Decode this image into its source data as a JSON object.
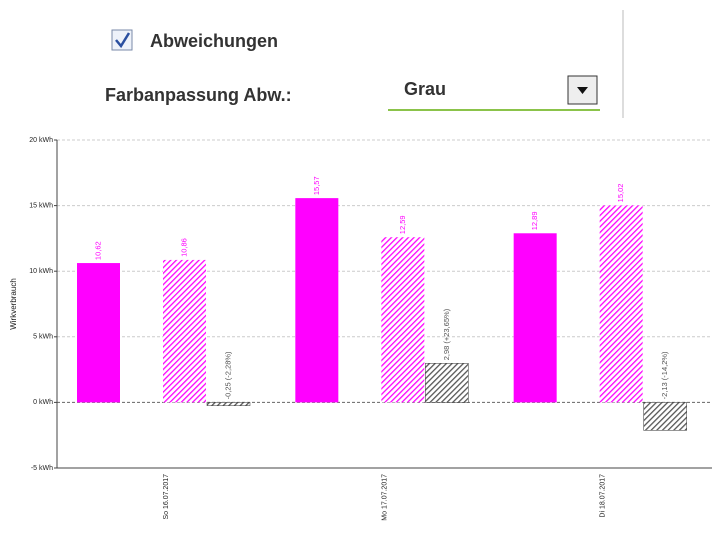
{
  "controls": {
    "checkbox_label": "Abweichungen",
    "color_label": "Farbanpassung Abw.:",
    "dropdown_value": "Grau"
  },
  "chart_data": {
    "type": "bar",
    "y_axis_label": "Wirkverbrauch",
    "categories": [
      "So 16.07.2017",
      "Mo 17.07.2017",
      "Di 18.07.2017"
    ],
    "series": [
      {
        "color": "#ff00ff",
        "pattern": "solid",
        "values": [
          10.62,
          15.57,
          12.89
        ],
        "value_labels": [
          "10,62",
          "15,57",
          "12,89"
        ]
      },
      {
        "color": "#ff00ff",
        "pattern": "hatched",
        "values": [
          10.86,
          12.59,
          15.02
        ],
        "value_labels": [
          "10,86",
          "12,59",
          "15,02"
        ]
      },
      {
        "color": "#555555",
        "pattern": "hatched",
        "values": [
          -0.25,
          2.98,
          -2.13
        ],
        "value_labels": [
          "-0,25 (-2,28%)",
          "2,98 (+23,65%)",
          "-2,13 (-14,2%)"
        ]
      }
    ],
    "ylim": [
      -5,
      20
    ],
    "yticks": [
      {
        "value": -5,
        "label": "-5 kWh"
      },
      {
        "value": 0,
        "label": "0 kWh"
      },
      {
        "value": 5,
        "label": "5 kWh"
      },
      {
        "value": 10,
        "label": "10 kWh"
      },
      {
        "value": 15,
        "label": "15 kWh"
      },
      {
        "value": 20,
        "label": "20 kWh"
      }
    ],
    "grid": true
  }
}
